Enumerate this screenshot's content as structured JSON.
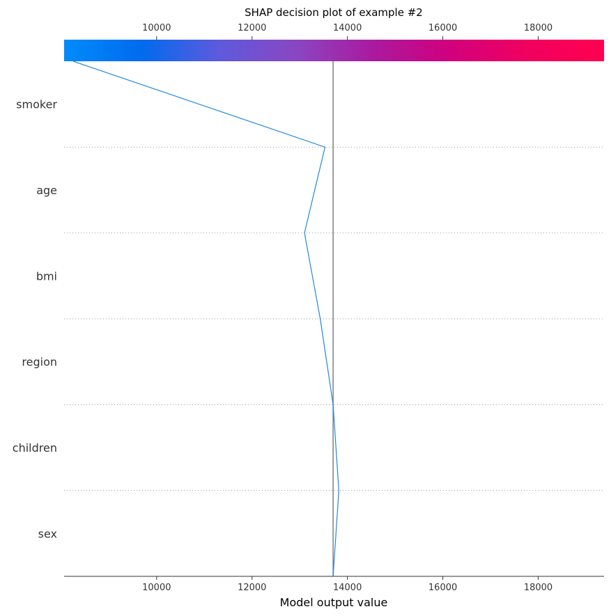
{
  "colors": {
    "line": "#1E88E5",
    "base_line": "#808080",
    "grid": "#999999",
    "axis": "#333333",
    "gradient_stops": [
      "#008BFB",
      "#006BEE",
      "#5D5ADE",
      "#8A46C2",
      "#AA1A9F",
      "#D1007E",
      "#F0005F",
      "#FF0051"
    ]
  },
  "chart_data": {
    "type": "line",
    "title": "SHAP decision plot of example #2",
    "xlabel": "Model output value",
    "ylabel": "",
    "xlim": [
      8060,
      19380
    ],
    "x_ticks": [
      10000,
      12000,
      14000,
      16000,
      18000
    ],
    "tick_labels": [
      "10000",
      "12000",
      "14000",
      "16000",
      "18000"
    ],
    "base_value": 13700,
    "features": [
      "smoker",
      "age",
      "bmi",
      "region",
      "children",
      "sex"
    ],
    "path": [
      8250,
      13530,
      13100,
      13430,
      13700,
      13820,
      13700
    ],
    "colorbar": {
      "min": 8060,
      "max": 19380
    },
    "grid": "dotted row separators"
  }
}
